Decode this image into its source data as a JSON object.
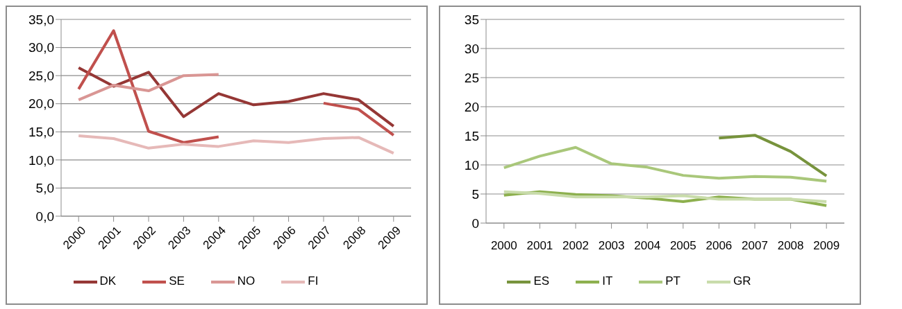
{
  "chart_data": [
    {
      "type": "line",
      "categories": [
        "2000",
        "2001",
        "2002",
        "2003",
        "2004",
        "2005",
        "2006",
        "2007",
        "2008",
        "2009"
      ],
      "series": [
        {
          "name": "DK",
          "color": "#953735",
          "values": [
            26.4,
            23.1,
            25.6,
            17.7,
            21.8,
            19.8,
            20.4,
            21.8,
            20.7,
            16.0
          ]
        },
        {
          "name": "SE",
          "color": "#c0504d",
          "values": [
            22.6,
            33.0,
            15.1,
            13.1,
            14.1,
            null,
            null,
            20.1,
            19.0,
            14.4
          ]
        },
        {
          "name": "NO",
          "color": "#d99694",
          "values": [
            20.7,
            23.3,
            22.3,
            25.0,
            25.2,
            null,
            null,
            null,
            null,
            null
          ]
        },
        {
          "name": "FI",
          "color": "#e6b9b8",
          "values": [
            14.3,
            13.8,
            12.1,
            12.8,
            12.4,
            13.4,
            13.1,
            13.8,
            14.0,
            11.2
          ]
        }
      ],
      "ylim": [
        0,
        35
      ],
      "yticks": [
        {
          "value": 0,
          "label": "0,0"
        },
        {
          "value": 5,
          "label": "5,0"
        },
        {
          "value": 10,
          "label": "10,0"
        },
        {
          "value": 15,
          "label": "15,0"
        },
        {
          "value": 20,
          "label": "20,0"
        },
        {
          "value": 25,
          "label": "25,0"
        },
        {
          "value": 30,
          "label": "30,0"
        },
        {
          "value": 35,
          "label": "35,0"
        }
      ],
      "grid": "y",
      "legend": "bottom",
      "marker": "none",
      "line_style": "solid"
    },
    {
      "type": "line",
      "categories": [
        "2000",
        "2001",
        "2002",
        "2003",
        "2004",
        "2005",
        "2006",
        "2007",
        "2008",
        "2009"
      ],
      "series": [
        {
          "name": "ES",
          "color": "#77933c",
          "values": [
            null,
            null,
            null,
            null,
            null,
            null,
            14.6,
            15.1,
            12.3,
            8.1
          ]
        },
        {
          "name": "IT",
          "color": "#8db04e",
          "values": [
            4.8,
            5.4,
            4.9,
            4.7,
            4.3,
            3.7,
            4.5,
            4.1,
            4.1,
            3.0
          ]
        },
        {
          "name": "PT",
          "color": "#a9c77a",
          "values": [
            9.5,
            11.5,
            13.0,
            10.2,
            9.6,
            8.2,
            7.7,
            8.0,
            7.9,
            7.2
          ]
        },
        {
          "name": "GR",
          "color": "#c9dcab",
          "values": [
            5.4,
            5.1,
            4.5,
            4.5,
            4.5,
            4.7,
            4.1,
            4.1,
            4.1,
            3.7
          ]
        }
      ],
      "ylim": [
        0,
        35
      ],
      "yticks": [
        0,
        5,
        10,
        15,
        20,
        25,
        30,
        35
      ],
      "grid": "y",
      "legend": "bottom",
      "marker": "none",
      "line_style": "solid"
    }
  ]
}
